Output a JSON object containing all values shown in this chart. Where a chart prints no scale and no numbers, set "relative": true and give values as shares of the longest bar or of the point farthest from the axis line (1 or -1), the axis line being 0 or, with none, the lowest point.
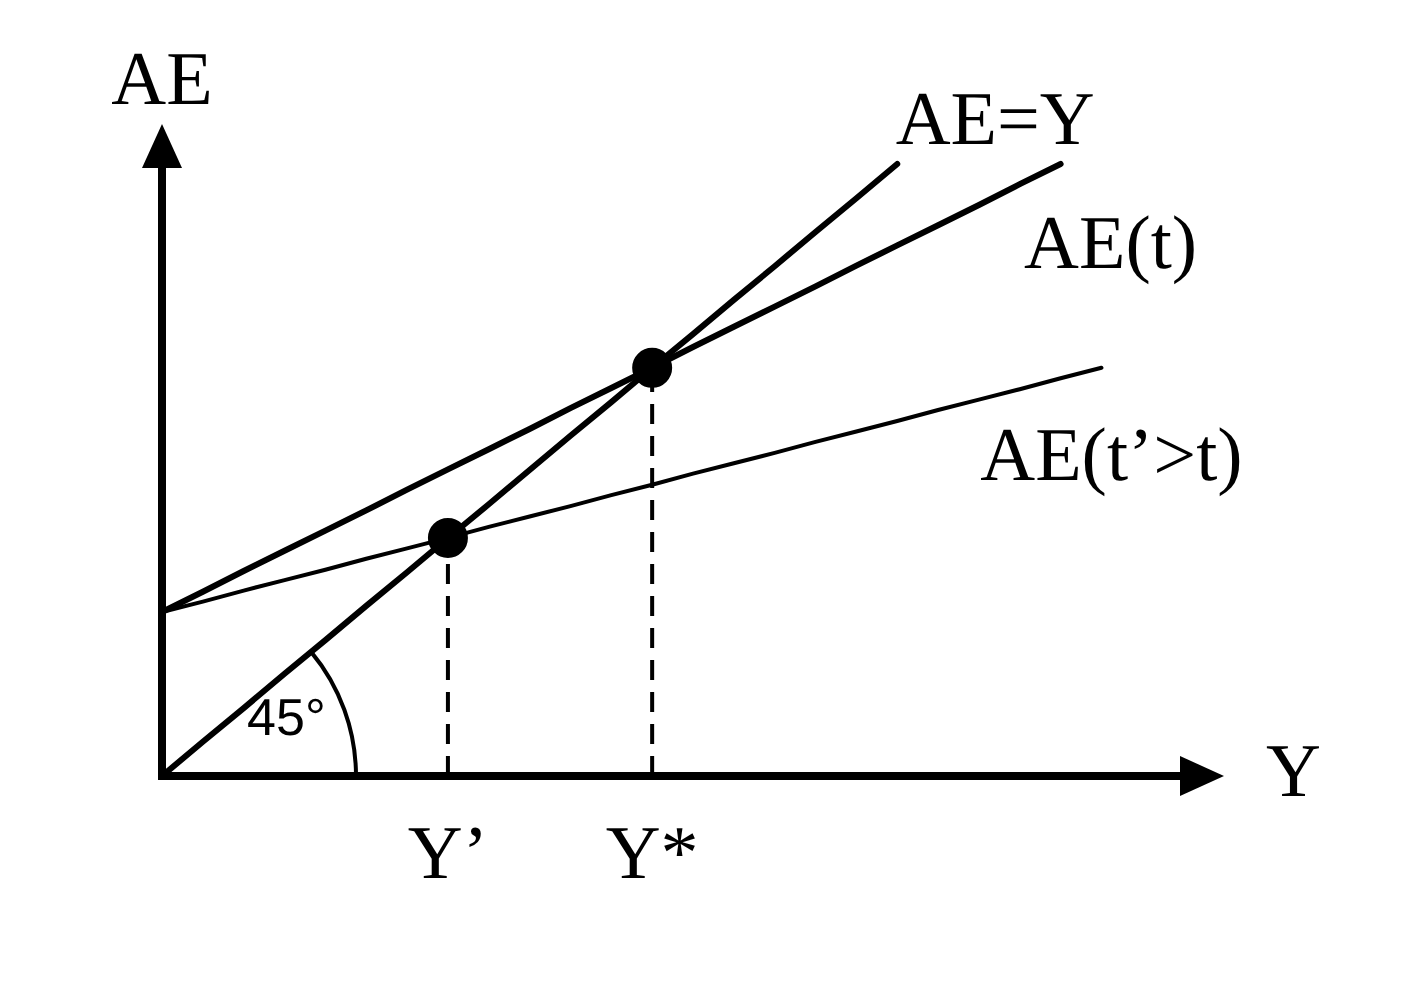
{
  "chart_data": {
    "type": "line",
    "xlabel": "Y",
    "ylabel": "AE",
    "relative": true,
    "legend": false,
    "marker": "none",
    "tick_labels": "x",
    "categories": [
      null,
      null,
      null,
      null,
      null,
      null,
      null,
      "Y’",
      null,
      null,
      null,
      null,
      "Y*",
      null,
      null,
      null,
      null,
      null,
      null,
      null,
      null,
      null,
      null,
      null,
      null,
      null,
      null
    ],
    "series": [
      {
        "name": "AE=Y",
        "color": "#000000",
        "values": [
          0,
          0.056,
          0.111,
          0.167,
          0.222,
          0.278,
          0.333,
          0.389,
          0.444,
          0.5,
          0.556,
          0.611,
          0.667,
          0.722,
          0.778,
          0.833,
          0.889,
          0.944,
          1,
          null,
          null,
          null,
          null,
          null,
          null,
          null,
          null
        ]
      },
      {
        "name": "AE(t)",
        "color": "#000000",
        "values": [
          0.268,
          0.301,
          0.335,
          0.368,
          0.401,
          0.434,
          0.468,
          0.501,
          0.534,
          0.567,
          0.601,
          0.634,
          0.667,
          0.701,
          0.734,
          0.767,
          0.8,
          0.834,
          0.867,
          0.9,
          0.933,
          0.967,
          1,
          null,
          null,
          null,
          null
        ]
      },
      {
        "name": "AE(t’>t)",
        "color": "#000000",
        "values": [
          0.268,
          0.285,
          0.303,
          0.32,
          0.337,
          0.355,
          0.372,
          0.389,
          0.407,
          0.424,
          0.441,
          0.459,
          0.476,
          0.494,
          0.511,
          0.528,
          0.546,
          0.563,
          0.58,
          0.598,
          0.615,
          0.632,
          0.65,
          0.667,
          null,
          null,
          null
        ]
      },
      {
        "type": "lollipop",
        "marker": "circle",
        "line_style": "dashed",
        "color": "#000000",
        "values": [
          null,
          null,
          null,
          null,
          null,
          null,
          null,
          0.389,
          null,
          null,
          null,
          null,
          0.667,
          null,
          null,
          null,
          null,
          null,
          null,
          null,
          null,
          null,
          null,
          null,
          null,
          null,
          null
        ]
      }
    ],
    "annotations": [
      "45°"
    ]
  }
}
